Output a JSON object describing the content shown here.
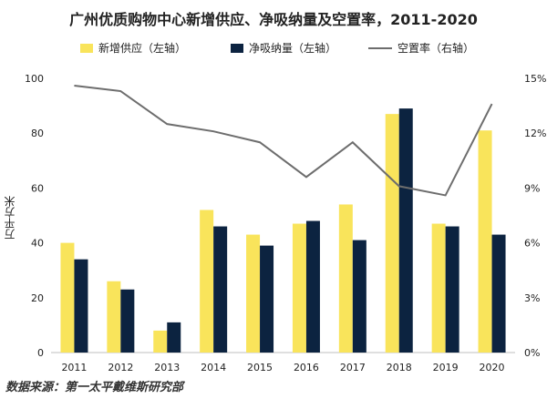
{
  "chart_data": {
    "type": "bar",
    "title": "广州优质购物中心新增供应、净吸纳量及空置率，2011-2020",
    "categories": [
      "2011",
      "2012",
      "2013",
      "2014",
      "2015",
      "2016",
      "2017",
      "2018",
      "2019",
      "2020"
    ],
    "series": [
      {
        "name": "新增供应（左轴）",
        "kind": "bar",
        "axis": "left",
        "color": "#f9e45b",
        "values": [
          40,
          26,
          8,
          52,
          43,
          47,
          54,
          87,
          47,
          81
        ]
      },
      {
        "name": "净吸纳量（左轴）",
        "kind": "bar",
        "axis": "left",
        "color": "#0c2340",
        "values": [
          34,
          23,
          11,
          46,
          39,
          48,
          41,
          89,
          46,
          43
        ]
      },
      {
        "name": "空置率（右轴）",
        "kind": "line",
        "axis": "right",
        "color": "#6d6d6d",
        "values": [
          14.6,
          14.3,
          12.5,
          12.1,
          11.5,
          9.6,
          11.5,
          9.1,
          8.6,
          13.6
        ]
      }
    ],
    "ylabel": "万平方米",
    "ylim": [
      0,
      100
    ],
    "yticks": [
      "0",
      "20",
      "40",
      "60",
      "80",
      "100"
    ],
    "y2lim": [
      0,
      15
    ],
    "y2ticks": [
      "0%",
      "3%",
      "6%",
      "9%",
      "12%",
      "15%"
    ],
    "legend_position": "top",
    "grid": false
  },
  "source": "数据来源：第一太平戴维斯研究部"
}
